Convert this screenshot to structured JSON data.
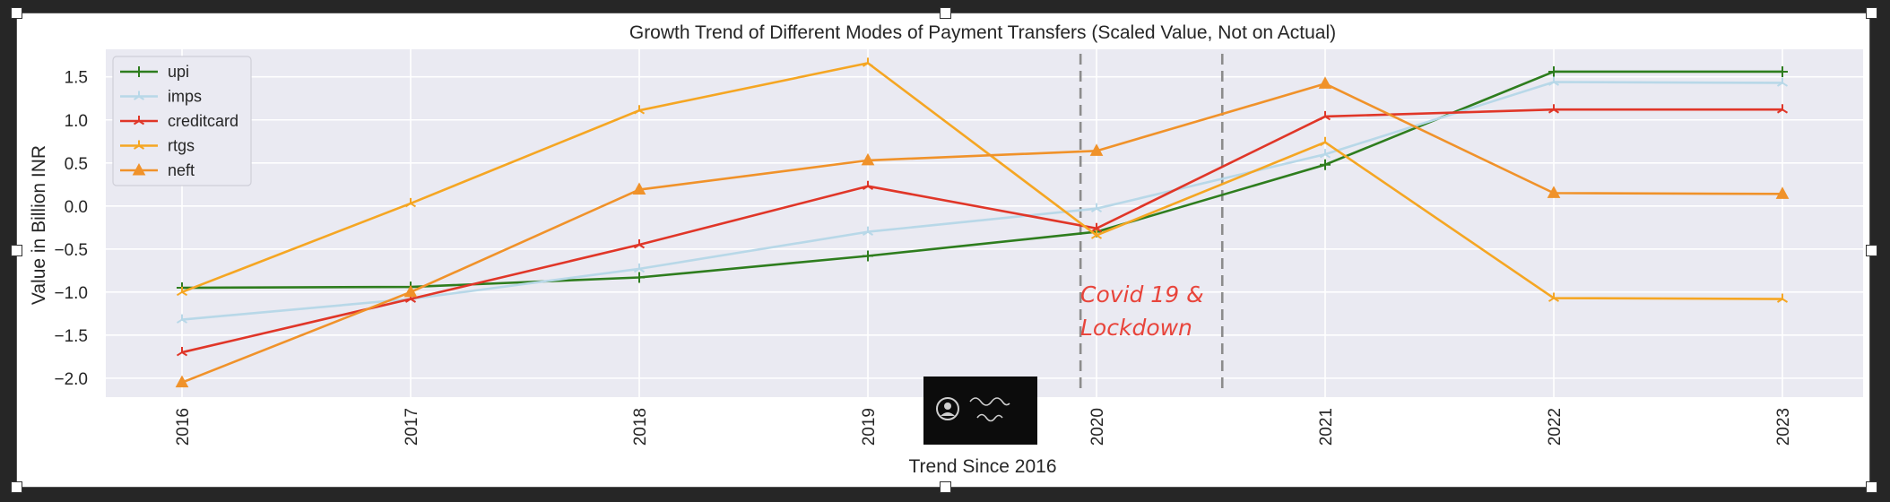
{
  "chart_data": {
    "type": "line",
    "title": "Growth Trend of Different Modes of Payment Transfers (Scaled Value, Not on Actual)",
    "xlabel": "Trend Since 2016",
    "ylabel": "Value in Billion INR",
    "categories": [
      "2016",
      "2017",
      "2018",
      "2019",
      "2020",
      "2021",
      "2022",
      "2023"
    ],
    "yticks": [
      -2.0,
      -1.5,
      -1.0,
      -0.5,
      0.0,
      0.5,
      1.0,
      1.5
    ],
    "ytick_labels": [
      "−2.0",
      "−1.5",
      "−1.0",
      "−0.5",
      "0.0",
      "0.5",
      "1.0",
      "1.5"
    ],
    "ylim": [
      -2.22,
      1.82
    ],
    "grid": true,
    "background": "#eaeaf2",
    "legend_position": "top-left",
    "series": [
      {
        "name": "upi",
        "color": "#2e7d1e",
        "marker": "plus",
        "values": [
          -0.95,
          -0.94,
          -0.83,
          -0.58,
          -0.3,
          0.48,
          1.56,
          1.56
        ]
      },
      {
        "name": "imps",
        "color": "#b8d8e8",
        "marker": "tri",
        "values": [
          -1.32,
          -1.08,
          -0.73,
          -0.3,
          -0.03,
          0.6,
          1.44,
          1.43
        ]
      },
      {
        "name": "creditcard",
        "color": "#e03628",
        "marker": "tri",
        "values": [
          -1.7,
          -1.08,
          -0.45,
          0.23,
          -0.26,
          1.04,
          1.12,
          1.12
        ]
      },
      {
        "name": "rtgs",
        "color": "#f5a623",
        "marker": "tri",
        "values": [
          -1.0,
          0.03,
          1.11,
          1.66,
          -0.34,
          0.74,
          -1.07,
          -1.08
        ]
      },
      {
        "name": "neft",
        "color": "#f0922a",
        "marker": "triangle",
        "values": [
          -2.05,
          -1.0,
          0.19,
          0.53,
          0.64,
          1.42,
          0.15,
          0.14
        ]
      }
    ],
    "annotations": [
      {
        "text_lines": [
          "Covid 19 &",
          "Lockdown"
        ],
        "color": "#e8453c"
      }
    ],
    "vertical_lines": [
      {
        "x": 2019.93
      },
      {
        "x": 2020.55
      }
    ]
  }
}
